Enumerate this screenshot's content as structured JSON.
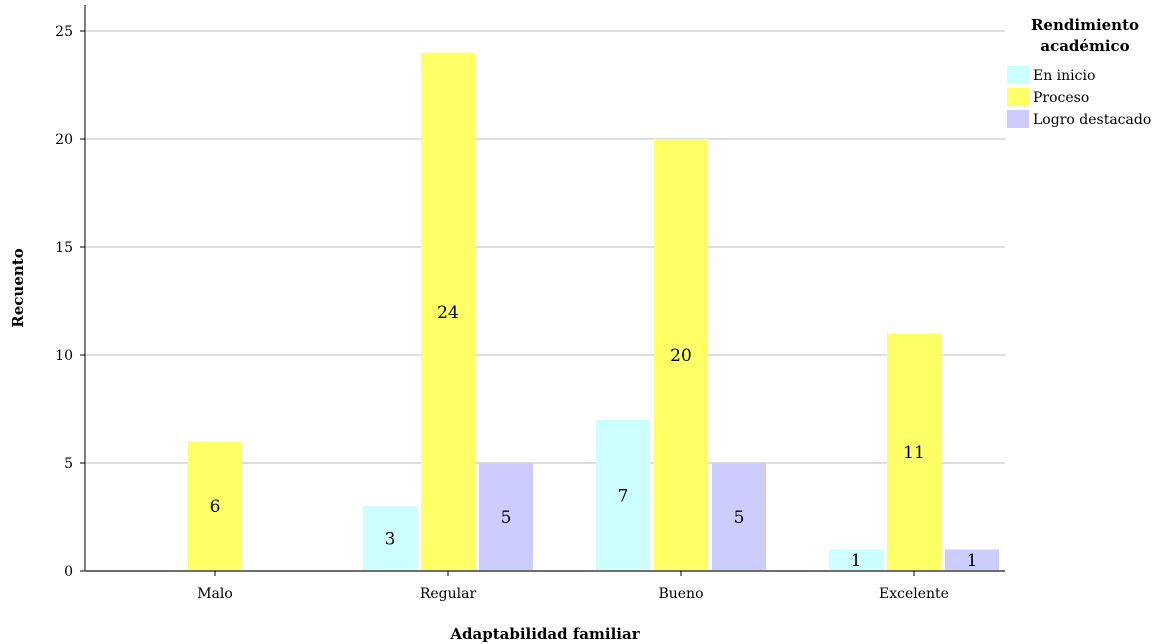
{
  "chart_data": {
    "type": "bar",
    "xlabel": "Adaptabilidad familiar",
    "ylabel": "Recuento",
    "categories": [
      "Malo",
      "Regular",
      "Bueno",
      "Excelente"
    ],
    "ylim": [
      0,
      25
    ],
    "yticks": [
      0,
      5,
      10,
      15,
      20,
      25
    ],
    "grid": true,
    "legend": {
      "title_lines": [
        "Rendimiento",
        "académico"
      ],
      "placement": "top-right"
    },
    "series": [
      {
        "name": "En inicio",
        "color": "#ccffff",
        "values": [
          0,
          3,
          7,
          1
        ]
      },
      {
        "name": "Proceso",
        "color": "#ffff66",
        "values": [
          6,
          24,
          20,
          11
        ]
      },
      {
        "name": "Logro destacado",
        "color": "#ccccff",
        "values": [
          0,
          5,
          5,
          1
        ]
      }
    ]
  }
}
